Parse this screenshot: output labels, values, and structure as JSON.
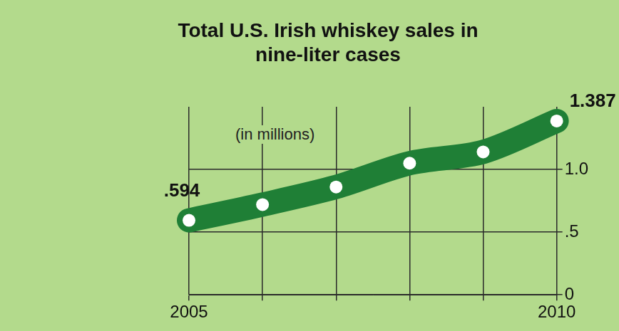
{
  "chart_data": {
    "type": "line",
    "title": "Total U.S. Irish whiskey sales in nine-liter cases",
    "subtitle": "(in millions)",
    "categories": [
      "2005",
      null,
      null,
      null,
      null,
      "2010"
    ],
    "values": [
      0.594,
      0.72,
      0.86,
      1.05,
      1.14,
      1.387
    ],
    "value_labels": [
      ".594",
      null,
      null,
      null,
      null,
      "1.387"
    ],
    "color": "#1f7f36",
    "marker": "circle",
    "ylim": [
      0,
      1.5
    ],
    "yticks": [
      0,
      {
        "value": 0.5,
        "label": ".5"
      },
      {
        "value": 1,
        "label": "1.0"
      }
    ],
    "grid": true
  }
}
